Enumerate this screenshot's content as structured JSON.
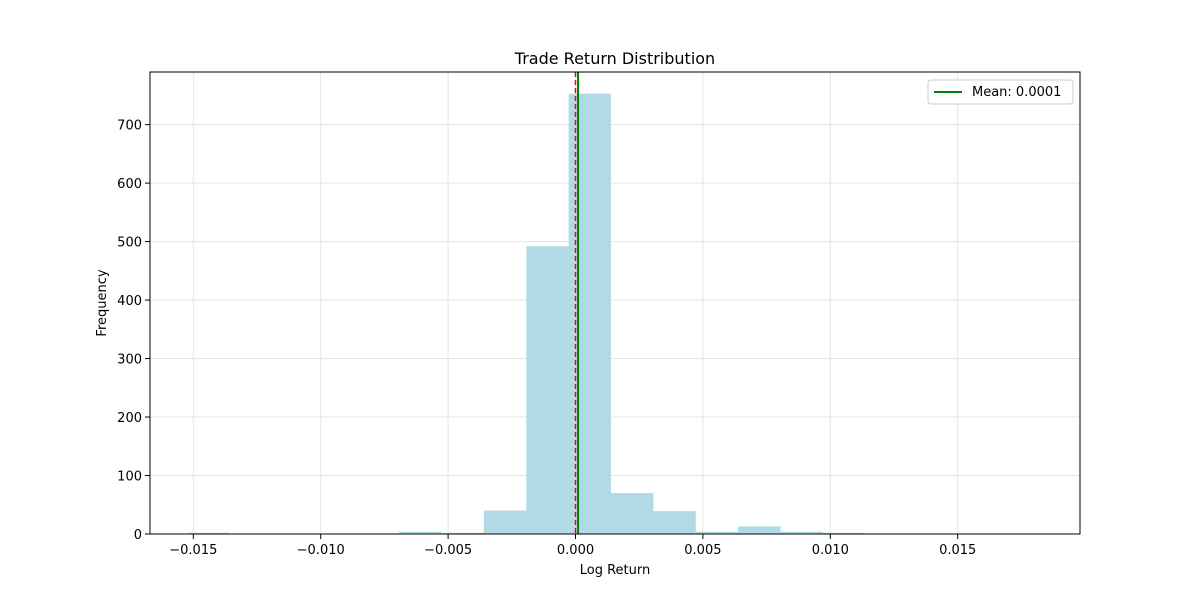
{
  "chart_data": {
    "type": "bar",
    "title": "Trade Return Distribution",
    "xlabel": "Log Return",
    "ylabel": "Frequency",
    "xlim": [
      -0.0167,
      0.0198
    ],
    "ylim": [
      0,
      790
    ],
    "xticks": [
      -0.015,
      -0.01,
      -0.005,
      0.0,
      0.005,
      0.01,
      0.015
    ],
    "xtick_labels": [
      "−0.015",
      "−0.010",
      "−0.005",
      "0.000",
      "0.005",
      "0.010",
      "0.015"
    ],
    "yticks": [
      0,
      100,
      200,
      300,
      400,
      500,
      600,
      700
    ],
    "ytick_labels": [
      "0",
      "100",
      "200",
      "300",
      "400",
      "500",
      "600",
      "700"
    ],
    "grid": true,
    "bin_width": 0.001663,
    "bins": [
      {
        "x0": -0.01524,
        "x1": -0.01358,
        "count": 2
      },
      {
        "x0": -0.01358,
        "x1": -0.01191,
        "count": 0
      },
      {
        "x0": -0.01191,
        "x1": -0.01025,
        "count": 0
      },
      {
        "x0": -0.01025,
        "x1": -0.00859,
        "count": 1
      },
      {
        "x0": -0.00859,
        "x1": -0.00692,
        "count": 1
      },
      {
        "x0": -0.00692,
        "x1": -0.00526,
        "count": 4
      },
      {
        "x0": -0.00526,
        "x1": -0.0036,
        "count": 2
      },
      {
        "x0": -0.0036,
        "x1": -0.00193,
        "count": 40
      },
      {
        "x0": -0.00193,
        "x1": -0.00027,
        "count": 492
      },
      {
        "x0": -0.00027,
        "x1": 0.00139,
        "count": 753
      },
      {
        "x0": 0.00139,
        "x1": 0.00306,
        "count": 70
      },
      {
        "x0": 0.00306,
        "x1": 0.00472,
        "count": 39
      },
      {
        "x0": 0.00472,
        "x1": 0.00638,
        "count": 4
      },
      {
        "x0": 0.00638,
        "x1": 0.00805,
        "count": 13
      },
      {
        "x0": 0.00805,
        "x1": 0.00971,
        "count": 4
      },
      {
        "x0": 0.00971,
        "x1": 0.01137,
        "count": 2
      },
      {
        "x0": 0.01137,
        "x1": 0.01304,
        "count": 1
      },
      {
        "x0": 0.01304,
        "x1": 0.0147,
        "count": 1
      },
      {
        "x0": 0.0147,
        "x1": 0.01636,
        "count": 0
      },
      {
        "x0": 0.01636,
        "x1": 0.01803,
        "count": 1
      }
    ],
    "mean_line": {
      "value": 0.0001,
      "label": "Mean: 0.0001",
      "color": "#008000"
    },
    "zero_line": {
      "value": 0.0,
      "color": "#ff0000",
      "style": "dashed"
    },
    "legend": {
      "position": "top-right",
      "entries": [
        "Mean: 0.0001"
      ]
    },
    "colors": {
      "bars": "#add8e6",
      "grid": "#e5e5e5",
      "axes": "#000000"
    }
  }
}
